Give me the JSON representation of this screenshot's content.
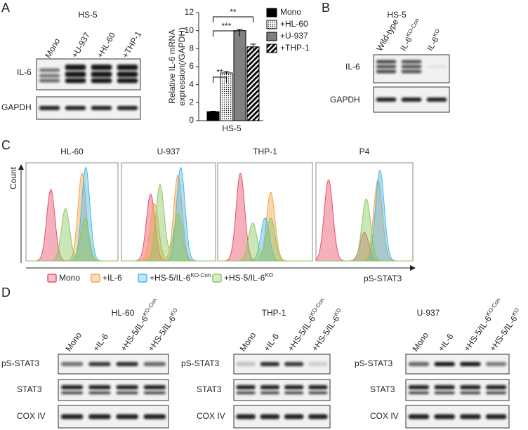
{
  "panel_labels": [
    "A",
    "B",
    "C",
    "D"
  ],
  "panel_a": {
    "cell_line": "HS-5",
    "lanes": [
      "Mono",
      "+U-937",
      "+HL-60",
      "+THP-1"
    ],
    "rows": [
      "IL-6",
      "GAPDH"
    ]
  },
  "chart_data": {
    "type": "bar",
    "ylabel": [
      "Relative IL-6 mRNA",
      "expression(/GAPDH)"
    ],
    "xlabel": "HS-5",
    "categories": [
      "Mono",
      "+HL-60",
      "+U-937",
      "+THP-1"
    ],
    "values": [
      1,
      5.3,
      10,
      8.2
    ],
    "errors": [
      0.05,
      0.15,
      0.15,
      0.3
    ],
    "colors": [
      "#000000",
      "#ffffff",
      "#808080",
      "#222222"
    ],
    "ylim": [
      0,
      12
    ],
    "yticks": [
      0,
      2,
      4,
      6,
      8,
      10,
      12
    ],
    "significance": [
      "**",
      "***",
      "**"
    ]
  },
  "panel_b": {
    "cell_line": "HS-5",
    "lanes": [
      "Wild-type",
      {
        "text": "IL-6",
        "sup": "KO-Con"
      },
      {
        "text": "IL-6",
        "sup": "KO"
      }
    ],
    "rows": [
      "IL-6",
      "GAPDH"
    ]
  },
  "panel_c": {
    "samples": [
      "HL-60",
      "U-937",
      "THP-1",
      "P4"
    ],
    "y_label": "Count",
    "x_label": "pS-STAT3",
    "legend": [
      {
        "text": "Mono",
        "color": "#e8506a"
      },
      {
        "text": "+IL-6",
        "color": "#f5a54a"
      },
      {
        "text": "+HS-5/IL-6",
        "sup": "KO-Con",
        "color": "#4ab8ee"
      },
      {
        "text": "+HS-5/IL-6",
        "sup": "KO",
        "color": "#8cc860"
      }
    ]
  },
  "panel_d": {
    "blots": [
      {
        "cell_line": "HL-60",
        "lanes": [
          "Mono",
          "+IL-6",
          {
            "text": "+HS-5/IL-6",
            "sup": "KO-Con"
          },
          {
            "text": "+HS-5/IL-6",
            "sup": "KO"
          }
        ],
        "rows": [
          "pS-STAT3",
          "STAT3",
          "COX IV"
        ]
      },
      {
        "cell_line": "THP-1",
        "lanes": [
          "Mono",
          "+IL-6",
          {
            "text": "+HS-5/IL-6",
            "sup": "KO-Con"
          },
          {
            "text": "+HS-5/IL-6",
            "sup": "KO"
          }
        ],
        "rows": [
          "pS-STAT3",
          "STAT3",
          "COX IV"
        ]
      },
      {
        "cell_line": "U-937",
        "lanes": [
          "Mono",
          "+IL-6",
          {
            "text": "+HS-5/IL-6",
            "sup": "KO-Con"
          },
          {
            "text": "+HS-5/IL-6",
            "sup": "KO"
          }
        ],
        "rows": [
          "pS-STAT3",
          "STAT3",
          "COX IV"
        ]
      }
    ]
  }
}
